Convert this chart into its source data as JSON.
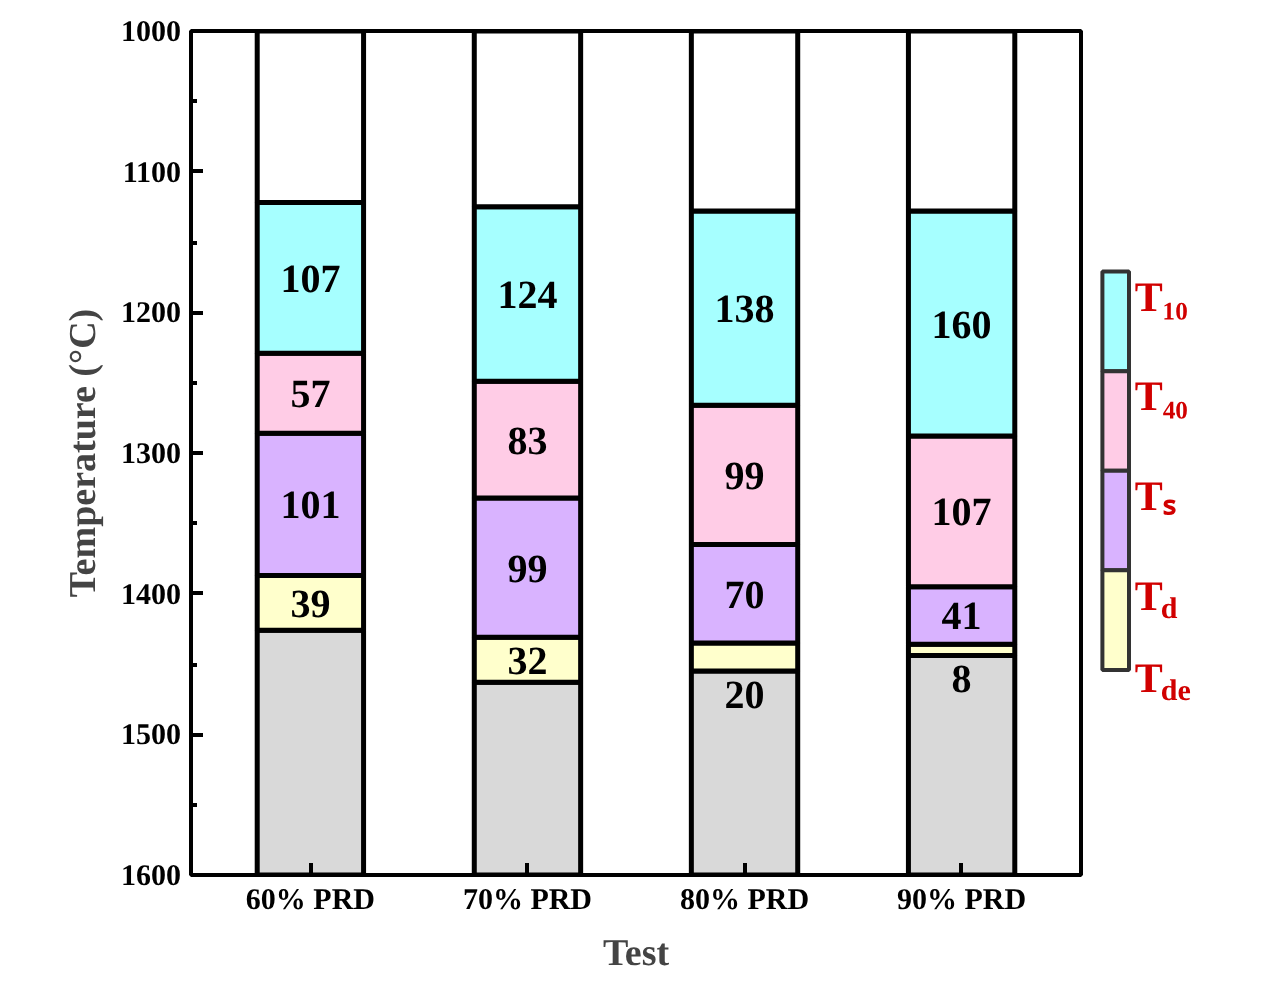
{
  "chart_data": {
    "type": "bar",
    "xlabel": "Test",
    "ylabel": "Temperature (°C)",
    "categories": [
      "60% PRD",
      "70% PRD",
      "80% PRD",
      "90% PRD"
    ],
    "ylim": [
      1600,
      1000
    ],
    "yticks": [
      1000,
      1100,
      1200,
      1300,
      1400,
      1500,
      1600
    ],
    "series": [
      {
        "color": "#d9d9d9",
        "base": [
          1426,
          1463,
          1455,
          1444
        ],
        "values": [
          174,
          137,
          145,
          156
        ],
        "value_labels": [
          null,
          null,
          null,
          null
        ]
      },
      {
        "name": "T$_{d}$",
        "color": "#ffffcc",
        "base": [
          1387,
          1431,
          1435,
          1436
        ],
        "values": [
          39,
          32,
          20,
          8
        ],
        "value_labels": [
          "39",
          "32",
          "20",
          "8"
        ]
      },
      {
        "name": "Tₛ",
        "color": "#d9b3ff",
        "base": [
          1286,
          1332,
          1365,
          1395
        ],
        "values": [
          101,
          99,
          70,
          41
        ],
        "value_labels": [
          "101",
          "99",
          "70",
          "41"
        ]
      },
      {
        "name": "T₄₀",
        "color": "#ffcce6",
        "base": [
          1229,
          1249,
          1266,
          1288
        ],
        "values": [
          57,
          83,
          99,
          107
        ],
        "value_labels": [
          "57",
          "83",
          "99",
          "107"
        ]
      },
      {
        "name": "T₁₀",
        "color": "#a6ffff",
        "base": [
          1122,
          1125,
          1128,
          1128
        ],
        "values": [
          107,
          124,
          138,
          160
        ],
        "value_labels": [
          "107",
          "124",
          "138",
          "160"
        ]
      },
      {
        "color": "#ffffff",
        "base": [
          1000,
          1000,
          1000,
          1000
        ],
        "values": [
          122,
          125,
          128,
          128
        ],
        "value_labels": [
          null,
          null,
          null,
          null
        ]
      }
    ],
    "annotations": [
      "T$_{de}$"
    ],
    "legend": "right",
    "grid": false
  }
}
